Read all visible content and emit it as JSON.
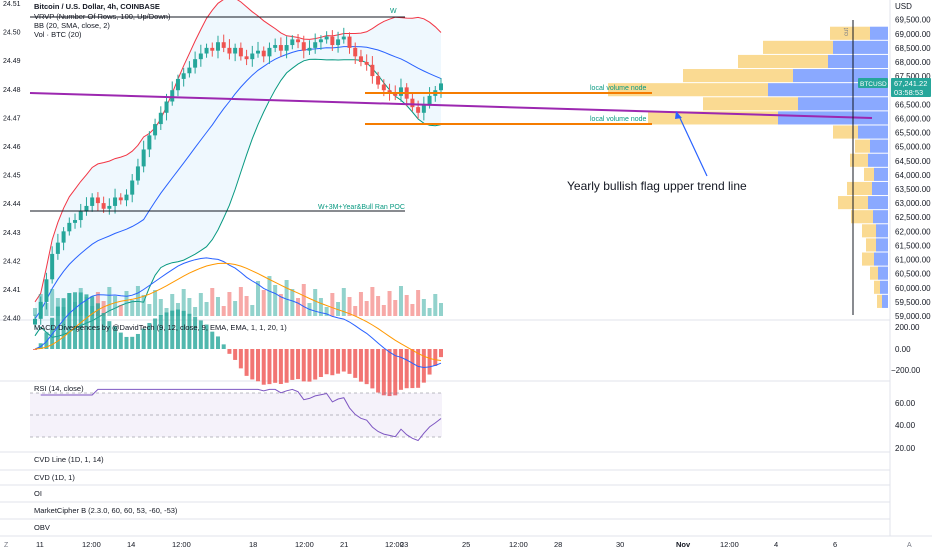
{
  "header": {
    "title": "Bitcoin / U.S. Dollar, 4h, COINBASE",
    "indicators": [
      "VRVP (Number Of Rows, 100, Up/Down)",
      "BB (20, SMA, close, 2)",
      "Vol · BTC (20)"
    ]
  },
  "right_axis": {
    "currency": "USD",
    "ticks": [
      "69,500.00",
      "69,000.00",
      "68,500.00",
      "68,000.00",
      "67,500.00",
      "67,000.00",
      "66,500.00",
      "66,000.00",
      "65,500.00",
      "65,000.00",
      "64,500.00",
      "64,000.00",
      "63,500.00",
      "63,000.00",
      "62,500.00",
      "62,000.00",
      "61,500.00",
      "61,000.00",
      "60,500.00",
      "60,000.00",
      "59,500.00",
      "59,000.00"
    ],
    "symbol_badge": "BTCUSD",
    "price_badge": "67,241.22",
    "countdown_badge": "03:58:53"
  },
  "left_axis": {
    "ticks": [
      "24.51",
      "24.50",
      "24.49",
      "24.48",
      "24.47",
      "24.46",
      "24.45",
      "24.44",
      "24.43",
      "24.42",
      "24.41",
      "24.40"
    ]
  },
  "time_axis": {
    "labels": [
      "11",
      "12:00",
      "14",
      "12:00",
      "18",
      "12:00",
      "21",
      "12:00",
      "23",
      "25",
      "12:00",
      "28",
      "30",
      "Nov",
      "12:00",
      "4",
      "6"
    ]
  },
  "annotations": {
    "w_label": "W",
    "poc_label": "W+3M+Year&Bull Ran POC",
    "local_node_1": "local volume node",
    "local_node_2": "local volume node",
    "trend_note": "Yearly bullish flag upper trend line",
    "vertical_tag": "cut"
  },
  "panes": {
    "macd": {
      "title": "MACD Divergences by @DavidTech (9, 12, close, 9, EMA, EMA, 1, 1, 20, 1)",
      "ticks": [
        "200.00",
        "0.00",
        "−200.00"
      ]
    },
    "rsi": {
      "title": "RSI (14, close)",
      "ticks": [
        "60.00",
        "40.00",
        "20.00"
      ]
    },
    "cvd_line": {
      "title": "CVD Line (1D, 1, 14)"
    },
    "cvd": {
      "title": "CVD (1D, 1)"
    },
    "oi": {
      "title": "OI"
    },
    "marketcipher": {
      "title": "MarketCipher B (2.3.0, 60, 60, 53, -60, -53)"
    },
    "obv": {
      "title": "OBV"
    }
  },
  "colors": {
    "up": "#26a69a",
    "down": "#ef5350",
    "bb_upper": "#f23645",
    "bb_lower": "#089981",
    "bb_basis": "#2962ff",
    "trend": "#9c27b0",
    "node": "#f57c00",
    "vp_up": "#2962ff",
    "vp_down": "#f7c14a",
    "arrow": "#2962ff"
  },
  "chart_data": {
    "type": "candlestick",
    "ylim": [
      59000,
      69700
    ],
    "close_series": [
      58900,
      59500,
      60300,
      61200,
      61600,
      62000,
      62300,
      62400,
      62700,
      62900,
      63200,
      63000,
      62800,
      62900,
      63200,
      63100,
      63300,
      63800,
      64300,
      64900,
      65400,
      65800,
      66200,
      66600,
      67000,
      67400,
      67600,
      67800,
      68100,
      68300,
      68500,
      68400,
      68700,
      68500,
      68300,
      68500,
      68200,
      68100,
      68300,
      68400,
      68200,
      68500,
      68600,
      68400,
      68600,
      68800,
      68700,
      68400,
      68500,
      68700,
      68800,
      68900,
      68600,
      68800,
      68900,
      68500,
      68200,
      68000,
      67900,
      67500,
      67200,
      67000,
      66900,
      66800,
      67100,
      66700,
      66400,
      66200,
      66500,
      66800,
      67000,
      67241
    ],
    "series": [
      {
        "name": "Bitcoin / U.S. Dollar",
        "values": [
          58900,
          59500,
          60300,
          61200,
          61600,
          62000,
          62300,
          62400,
          62700,
          62900,
          63200,
          63000,
          62800,
          62900,
          63200,
          63100,
          63300,
          63800,
          64300,
          64900,
          65400,
          65800,
          66200,
          66600,
          67000,
          67400,
          67600,
          67800,
          68100,
          68300,
          68500,
          68400,
          68700,
          68500,
          68300,
          68500,
          68200,
          68100,
          68300,
          68400,
          68200,
          68500,
          68600,
          68400,
          68600,
          68800,
          68700,
          68400,
          68500,
          68700,
          68800,
          68900,
          68600,
          68800,
          68900,
          68500,
          68200,
          68000,
          67900,
          67500,
          67200,
          67000,
          66900,
          66800,
          67100,
          66700,
          66400,
          66200,
          66500,
          66800,
          67000,
          67241
        ]
      }
    ],
    "volume_profile": [
      {
        "price": 69000,
        "up": 18,
        "down": 40
      },
      {
        "price": 68500,
        "up": 55,
        "down": 70
      },
      {
        "price": 68000,
        "up": 60,
        "down": 90
      },
      {
        "price": 67500,
        "up": 95,
        "down": 110
      },
      {
        "price": 67000,
        "up": 120,
        "down": 160
      },
      {
        "price": 66500,
        "up": 90,
        "down": 95
      },
      {
        "price": 66000,
        "up": 110,
        "down": 130
      },
      {
        "price": 65500,
        "up": 30,
        "down": 25
      },
      {
        "price": 65000,
        "up": 18,
        "down": 15
      },
      {
        "price": 64500,
        "up": 20,
        "down": 18
      },
      {
        "price": 64000,
        "up": 14,
        "down": 10
      },
      {
        "price": 63500,
        "up": 16,
        "down": 25
      },
      {
        "price": 63000,
        "up": 20,
        "down": 30
      },
      {
        "price": 62500,
        "up": 15,
        "down": 22
      },
      {
        "price": 62000,
        "up": 12,
        "down": 14
      },
      {
        "price": 61500,
        "up": 12,
        "down": 10
      },
      {
        "price": 61000,
        "up": 14,
        "down": 12
      },
      {
        "price": 60500,
        "up": 10,
        "down": 8
      },
      {
        "price": 60000,
        "up": 8,
        "down": 6
      },
      {
        "price": 59500,
        "up": 6,
        "down": 5
      }
    ]
  }
}
